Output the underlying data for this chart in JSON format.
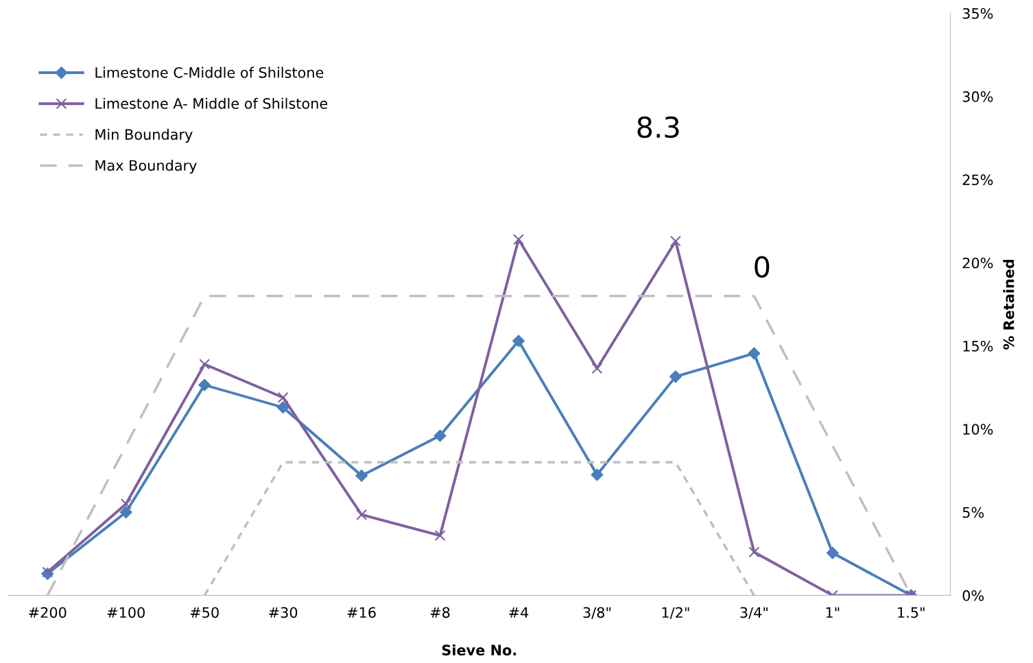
{
  "chart_data": {
    "type": "line",
    "xlabel": "Sieve No.",
    "ylabel": "% Retained",
    "categories": [
      "#200",
      "#100",
      "#50",
      "#30",
      "#16",
      "#8",
      "#4",
      "3/8\"",
      "1/2\"",
      "3/4\"",
      "1\"",
      "1.5\""
    ],
    "series": [
      {
        "name": "Limestone C-Middle of Shilstone",
        "color": "#4a7ebb",
        "marker": "diamond",
        "line_style": "solid",
        "values": [
          1.3,
          5.0,
          12.65,
          11.3,
          7.2,
          9.6,
          15.3,
          7.25,
          13.15,
          14.55,
          2.55,
          0
        ]
      },
      {
        "name": "Limestone A- Middle of Shilstone",
        "color": "#7f5fa0",
        "marker": "cross",
        "line_style": "solid",
        "values": [
          1.4,
          5.5,
          13.9,
          11.9,
          4.85,
          3.6,
          21.4,
          13.65,
          21.3,
          2.6,
          0,
          0
        ]
      },
      {
        "name": "Min Boundary",
        "color": "#bfbfbf",
        "marker": "none",
        "line_style": "dotted",
        "values": [
          null,
          null,
          0,
          8,
          8,
          8,
          8,
          8,
          8,
          0,
          null,
          null
        ]
      },
      {
        "name": "Max Boundary",
        "color": "#bfbfbf",
        "marker": "none",
        "line_style": "dashed",
        "values": [
          0,
          9,
          18,
          18,
          18,
          18,
          18,
          18,
          18,
          18,
          9,
          0
        ]
      }
    ],
    "ylim": [
      0,
      35
    ],
    "yticks": [
      {
        "value": 0,
        "label": "0%"
      },
      {
        "value": 5,
        "label": "5%"
      },
      {
        "value": 10,
        "label": "10%"
      },
      {
        "value": 15,
        "label": "15%"
      },
      {
        "value": 20,
        "label": "20%"
      },
      {
        "value": 25,
        "label": "25%"
      },
      {
        "value": 30,
        "label": "30%"
      },
      {
        "value": 35,
        "label": "35%"
      }
    ],
    "annotations": [
      "8.3",
      "0"
    ],
    "legend": "top left",
    "grid": false
  }
}
